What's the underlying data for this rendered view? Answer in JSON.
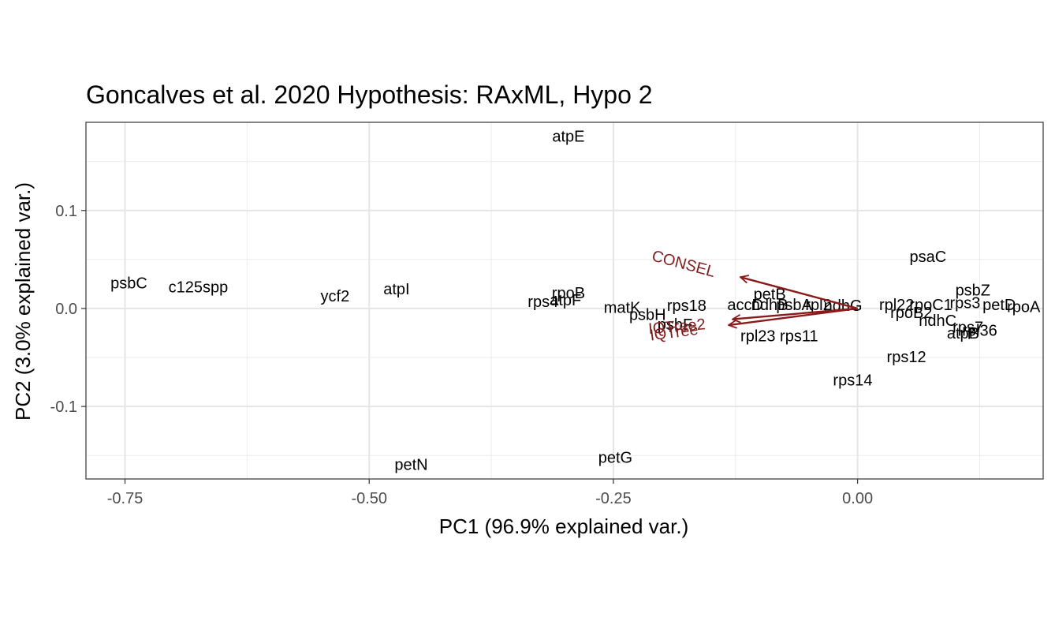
{
  "chart_data": {
    "type": "scatter",
    "title": "Goncalves et al. 2020 Hypothesis: RAxML,  Hypo 2",
    "xlabel": "PC1 (96.9% explained var.)",
    "ylabel": "PC2 (3.0% explained var.)",
    "xlim": [
      -0.79,
      0.19
    ],
    "ylim": [
      -0.174,
      0.19
    ],
    "x_ticks": [
      -0.75,
      -0.5,
      -0.25,
      0.0
    ],
    "x_tick_labels": [
      "-0.75",
      "-0.50",
      "-0.25",
      "0.00"
    ],
    "y_ticks": [
      -0.1,
      0.0,
      0.1
    ],
    "y_tick_labels": [
      "-0.1",
      "0.0",
      "0.1"
    ],
    "x_minor": [
      -0.625,
      -0.375,
      -0.125,
      0.125
    ],
    "y_minor": [
      -0.15,
      -0.05,
      0.05,
      0.15
    ],
    "grid": true,
    "points": [
      {
        "label": "atpE",
        "x": -0.296,
        "y": 0.176
      },
      {
        "label": "psbC",
        "x": -0.746,
        "y": 0.026
      },
      {
        "label": "c125spp",
        "x": -0.675,
        "y": 0.022
      },
      {
        "label": "ycf2",
        "x": -0.535,
        "y": 0.013
      },
      {
        "label": "atpI",
        "x": -0.472,
        "y": 0.02
      },
      {
        "label": "rpoB",
        "x": -0.296,
        "y": 0.016
      },
      {
        "label": "rps4",
        "x": -0.322,
        "y": 0.007
      },
      {
        "label": "atpF",
        "x": -0.299,
        "y": 0.009
      },
      {
        "label": "matK",
        "x": -0.241,
        "y": 0.001
      },
      {
        "label": "psbH",
        "x": -0.215,
        "y": -0.006
      },
      {
        "label": "rps18",
        "x": -0.175,
        "y": 0.003
      },
      {
        "label": "psbF",
        "x": -0.187,
        "y": -0.016
      },
      {
        "label": "petB",
        "x": -0.09,
        "y": 0.015
      },
      {
        "label": "accD",
        "x": -0.115,
        "y": 0.004
      },
      {
        "label": "ndhB",
        "x": -0.09,
        "y": 0.004
      },
      {
        "label": "psbA",
        "x": -0.065,
        "y": 0.004
      },
      {
        "label": "rpl2",
        "x": -0.04,
        "y": 0.004
      },
      {
        "label": "ndhG",
        "x": -0.015,
        "y": 0.003
      },
      {
        "label": "rpl23",
        "x": -0.102,
        "y": -0.028
      },
      {
        "label": "rps11",
        "x": -0.06,
        "y": -0.028
      },
      {
        "label": "psaC",
        "x": 0.072,
        "y": 0.053
      },
      {
        "label": "psbZ",
        "x": 0.118,
        "y": 0.019
      },
      {
        "label": "rpl22",
        "x": 0.04,
        "y": 0.004
      },
      {
        "label": "rpoC1",
        "x": 0.075,
        "y": 0.004
      },
      {
        "label": "rps3",
        "x": 0.11,
        "y": 0.006
      },
      {
        "label": "petD",
        "x": 0.145,
        "y": 0.004
      },
      {
        "label": "rpoA",
        "x": 0.17,
        "y": 0.002
      },
      {
        "label": "rpoB2",
        "x": 0.055,
        "y": -0.004
      },
      {
        "label": "ndhC",
        "x": 0.082,
        "y": -0.012
      },
      {
        "label": "rps7",
        "x": 0.113,
        "y": -0.019
      },
      {
        "label": "rpl36",
        "x": 0.125,
        "y": -0.022
      },
      {
        "label": "atpB",
        "x": 0.108,
        "y": -0.025
      },
      {
        "label": "rps12",
        "x": 0.05,
        "y": -0.049
      },
      {
        "label": "rps14",
        "x": -0.005,
        "y": -0.073
      },
      {
        "label": "petN",
        "x": -0.457,
        "y": -0.159
      },
      {
        "label": "petG",
        "x": -0.248,
        "y": -0.152
      }
    ],
    "vectors": [
      {
        "label": "CONSEL",
        "x": -0.12,
        "y": 0.032,
        "label_x": -0.178,
        "label_y": 0.046
      },
      {
        "label": "IQTree2",
        "x": -0.128,
        "y": -0.011,
        "label_x": -0.185,
        "label_y": -0.018
      },
      {
        "label": "IQTree",
        "x": -0.132,
        "y": -0.017,
        "label_x": -0.188,
        "label_y": -0.024
      }
    ],
    "vector_color": "#8b1a1a"
  }
}
